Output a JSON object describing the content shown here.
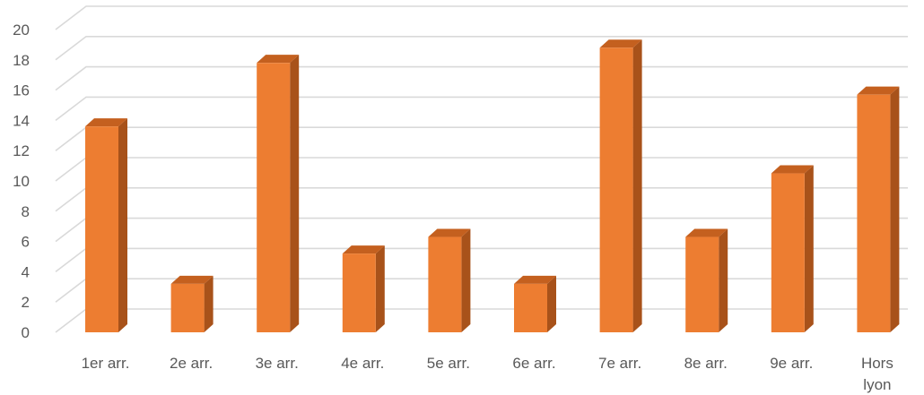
{
  "chart_data": {
    "type": "bar",
    "title": "",
    "xlabel": "",
    "ylabel": "",
    "categories": [
      "1er arr.",
      "2e arr.",
      "3e arr.",
      "4e arr.",
      "5e arr.",
      "6e arr.",
      "7e arr.",
      "8e arr.",
      "9e arr.",
      "Hors lyon"
    ],
    "values": [
      13.6,
      3.2,
      17.8,
      5.2,
      6.3,
      3.2,
      18.8,
      6.3,
      10.5,
      15.7
    ],
    "ylim": [
      0,
      20
    ],
    "yticks": [
      0,
      2,
      4,
      6,
      8,
      10,
      12,
      14,
      16,
      18,
      20
    ],
    "grid": true,
    "legend": "none",
    "three_d": true,
    "colors": {
      "bar_front": "#ed7d31",
      "bar_side": "#a8521a",
      "bar_top": "#c4601f",
      "grid": "#d9d9d9",
      "label": "#595959"
    }
  }
}
